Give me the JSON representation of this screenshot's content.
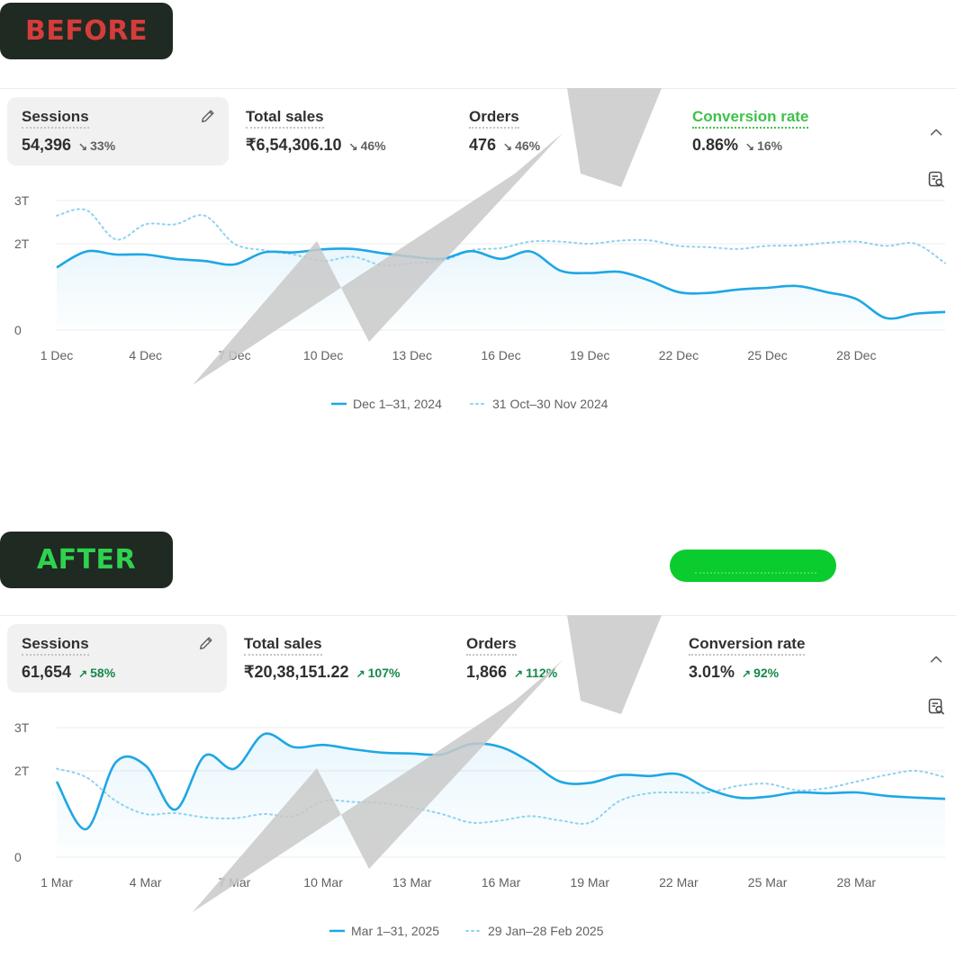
{
  "labels": {
    "before": "BEFORE",
    "after": "AFTER"
  },
  "colors": {
    "primary_line": "#1ea7e4",
    "comparison_line": "#8ed2f0",
    "positive": "#14894a",
    "neutral_change": "#616161",
    "conversion_highlight": "#3fc24a",
    "before_badge_text": "#d63c3c",
    "after_badge_text": "#2fd24f",
    "pill": "#0bcc2f"
  },
  "icons": [
    "edit-icon",
    "chevron-up-icon",
    "report-search-icon",
    "arrow-down-right-icon",
    "arrow-up-right-icon"
  ],
  "before": {
    "metrics": [
      {
        "title": "Sessions",
        "value": "54,396",
        "change": "33%",
        "direction": "down"
      },
      {
        "title": "Total sales",
        "value": "₹6,54,306.10",
        "change": "46%",
        "direction": "down"
      },
      {
        "title": "Orders",
        "value": "476",
        "change": "46%",
        "direction": "down"
      },
      {
        "title": "Conversion rate",
        "value": "0.86%",
        "change": "16%",
        "direction": "down"
      }
    ],
    "legend": {
      "current": "Dec 1–31, 2024",
      "previous": "31 Oct–30 Nov 2024"
    }
  },
  "after": {
    "metrics": [
      {
        "title": "Sessions",
        "value": "61,654",
        "change": "58%",
        "direction": "up"
      },
      {
        "title": "Total sales",
        "value": "₹20,38,151.22",
        "change": "107%",
        "direction": "up"
      },
      {
        "title": "Orders",
        "value": "1,866",
        "change": "112%",
        "direction": "up"
      },
      {
        "title": "Conversion rate",
        "value": "3.01%",
        "change": "92%",
        "direction": "up"
      }
    ],
    "legend": {
      "current": "Mar 1–31, 2025",
      "previous": "29 Jan–28 Feb 2025"
    }
  },
  "chart_data": [
    {
      "type": "line",
      "yticks": [
        "3T",
        "2T",
        "0"
      ],
      "ylim": [
        0,
        3
      ],
      "x": [
        1,
        2,
        3,
        4,
        5,
        6,
        7,
        8,
        9,
        10,
        11,
        12,
        13,
        14,
        15,
        16,
        17,
        18,
        19,
        20,
        21,
        22,
        23,
        24,
        25,
        26,
        27,
        28,
        29,
        30,
        31
      ],
      "xticks": [
        "1 Dec",
        "4 Dec",
        "7 Dec",
        "10 Dec",
        "13 Dec",
        "16 Dec",
        "19 Dec",
        "22 Dec",
        "25 Dec",
        "28 Dec"
      ],
      "series": [
        {
          "name": "Dec 1–31, 2024",
          "style": "solid",
          "values": [
            1.45,
            1.82,
            1.75,
            1.75,
            1.65,
            1.6,
            1.52,
            1.8,
            1.8,
            1.87,
            1.88,
            1.78,
            1.7,
            1.65,
            1.83,
            1.65,
            1.82,
            1.38,
            1.32,
            1.35,
            1.15,
            0.88,
            0.86,
            0.94,
            0.98,
            1.02,
            0.88,
            0.72,
            0.28,
            0.38,
            0.42
          ]
        },
        {
          "name": "31 Oct–30 Nov 2024",
          "style": "dotted",
          "values": [
            2.65,
            2.78,
            2.1,
            2.45,
            2.45,
            2.65,
            2.0,
            1.85,
            1.75,
            1.6,
            1.7,
            1.5,
            1.55,
            1.6,
            1.85,
            1.9,
            2.05,
            2.05,
            2.0,
            2.07,
            2.08,
            1.95,
            1.92,
            1.88,
            1.95,
            1.96,
            2.02,
            2.05,
            1.95,
            2.0,
            1.55
          ]
        }
      ]
    },
    {
      "type": "line",
      "yticks": [
        "3T",
        "2T",
        "0"
      ],
      "ylim": [
        0,
        3
      ],
      "x": [
        1,
        2,
        3,
        4,
        5,
        6,
        7,
        8,
        9,
        10,
        11,
        12,
        13,
        14,
        15,
        16,
        17,
        18,
        19,
        20,
        21,
        22,
        23,
        24,
        25,
        26,
        27,
        28,
        29,
        30,
        31
      ],
      "xticks": [
        "1 Mar",
        "4 Mar",
        "7 Mar",
        "10 Mar",
        "13 Mar",
        "16 Mar",
        "19 Mar",
        "22 Mar",
        "25 Mar",
        "28 Mar"
      ],
      "series": [
        {
          "name": "Mar 1–31, 2025",
          "style": "solid",
          "values": [
            1.75,
            0.65,
            2.2,
            2.12,
            1.1,
            2.35,
            2.05,
            2.85,
            2.55,
            2.6,
            2.5,
            2.42,
            2.4,
            2.38,
            2.62,
            2.55,
            2.2,
            1.75,
            1.72,
            1.9,
            1.88,
            1.92,
            1.58,
            1.38,
            1.4,
            1.5,
            1.48,
            1.5,
            1.42,
            1.38,
            1.35
          ]
        },
        {
          "name": "29 Jan–28 Feb 2025",
          "style": "dotted",
          "values": [
            2.05,
            1.85,
            1.3,
            1.0,
            1.02,
            0.92,
            0.9,
            1.0,
            0.95,
            1.3,
            1.28,
            1.25,
            1.15,
            1.0,
            0.8,
            0.85,
            0.95,
            0.85,
            0.8,
            1.3,
            1.48,
            1.5,
            1.5,
            1.65,
            1.7,
            1.55,
            1.6,
            1.75,
            1.9,
            2.0,
            1.85
          ]
        }
      ]
    }
  ]
}
